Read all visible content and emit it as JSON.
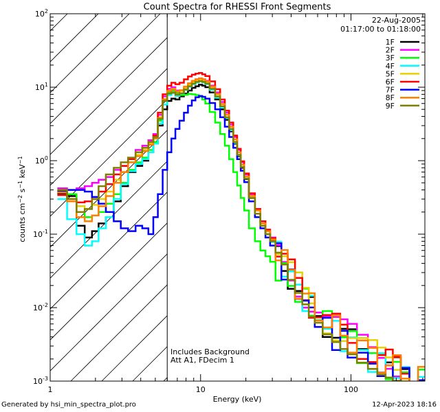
{
  "chart_data": {
    "type": "line",
    "title": "Count Spectra for RHESSI Front Segments",
    "xlabel": "Energy (keV)",
    "ylabel": "counts cm^-2 s^-1 keV^-1",
    "xscale": "log",
    "yscale": "log",
    "xlim": [
      1,
      310
    ],
    "ylim": [
      0.001,
      100
    ],
    "x_tick_labels": [
      {
        "value": 1,
        "label": "1"
      },
      {
        "value": 10,
        "label": "10"
      },
      {
        "value": 100,
        "label": "100"
      }
    ],
    "y_tick_labels": [
      {
        "value": 100,
        "label": "10",
        "exp": "2"
      },
      {
        "value": 10,
        "label": "10",
        "exp": "1"
      },
      {
        "value": 1,
        "label": "10",
        "exp": "0"
      },
      {
        "value": 0.1,
        "label": "10",
        "exp": "-1"
      },
      {
        "value": 0.01,
        "label": "10",
        "exp": "-2"
      },
      {
        "value": 0.001,
        "label": "10",
        "exp": "-3"
      }
    ],
    "grid": false,
    "legend_position": "top-right",
    "annotations": {
      "date": "22-Aug-2005",
      "time_range": "01:17:00 to 01:18:00",
      "bg_note": "Includes Background",
      "atten_note": "Att A1, FDecim 1"
    },
    "shaded_region_below_keV": 6,
    "energies": [
      1.2,
      1.4,
      1.6,
      1.8,
      2.0,
      2.2,
      2.5,
      2.8,
      3.1,
      3.5,
      3.9,
      4.3,
      4.7,
      5.0,
      5.4,
      5.8,
      6.2,
      6.6,
      7.0,
      7.5,
      8.0,
      8.5,
      9.0,
      9.5,
      10.0,
      10.5,
      11.0,
      12.0,
      13.0,
      14.0,
      15.0,
      16.0,
      17.0,
      18.0,
      19.0,
      20.0,
      22.0,
      24.0,
      26.0,
      28.0,
      30.0,
      33.0,
      36.0,
      40.0,
      45.0,
      50.0,
      55.0,
      60.0,
      70.0,
      80.0,
      90.0,
      100.0,
      120.0,
      140.0,
      160.0,
      180.0,
      200.0,
      230.0,
      260.0,
      300.0
    ],
    "series": [
      {
        "name": "1F",
        "color": "#000000",
        "values": [
          0.36,
          0.33,
          0.13,
          0.09,
          0.11,
          0.14,
          0.17,
          0.28,
          0.45,
          0.7,
          0.85,
          1.0,
          1.3,
          1.7,
          3.0,
          5.0,
          6.5,
          7.0,
          6.8,
          7.5,
          8.2,
          9.0,
          9.8,
          10.3,
          10.8,
          10.5,
          10.0,
          8.5,
          6.8,
          5.0,
          3.6,
          2.5,
          1.7,
          1.15,
          0.8,
          0.56,
          0.31,
          0.19,
          0.13,
          0.1,
          0.08,
          0.055,
          0.04,
          0.027,
          0.018,
          0.013,
          0.01,
          0.0085,
          0.006,
          0.0048,
          0.004,
          0.0034,
          0.0026,
          0.0021,
          0.0018,
          0.0016,
          0.0014,
          0.0012,
          0.0011,
          0.001
        ]
      },
      {
        "name": "2F",
        "color": "#ff00ff",
        "values": [
          0.42,
          0.4,
          0.42,
          0.45,
          0.5,
          0.55,
          0.6,
          0.75,
          0.85,
          1.1,
          1.4,
          1.6,
          1.9,
          2.3,
          4.2,
          7.5,
          9.5,
          10.0,
          9.0,
          9.0,
          9.8,
          11.0,
          12.0,
          12.8,
          13.2,
          12.8,
          12.2,
          10.5,
          8.5,
          6.3,
          4.5,
          3.1,
          2.1,
          1.4,
          0.95,
          0.65,
          0.35,
          0.22,
          0.15,
          0.115,
          0.09,
          0.063,
          0.046,
          0.031,
          0.021,
          0.015,
          0.012,
          0.0098,
          0.007,
          0.0057,
          0.0047,
          0.004,
          0.0031,
          0.0025,
          0.0022,
          0.0019,
          0.0017,
          0.0015,
          0.0013,
          0.0012
        ]
      },
      {
        "name": "3F",
        "color": "#00ff00",
        "values": [
          0.4,
          0.35,
          0.2,
          0.17,
          0.18,
          0.2,
          0.26,
          0.35,
          0.5,
          0.75,
          0.95,
          1.1,
          1.4,
          1.8,
          3.5,
          6.5,
          8.5,
          9.0,
          8.2,
          7.8,
          7.9,
          8.1,
          8.0,
          7.8,
          7.4,
          6.8,
          6.0,
          4.6,
          3.3,
          2.3,
          1.6,
          1.05,
          0.7,
          0.46,
          0.31,
          0.21,
          0.12,
          0.08,
          0.06,
          0.05,
          0.042,
          0.034,
          0.028,
          0.021,
          0.016,
          0.012,
          0.0095,
          0.008,
          0.006,
          0.0048,
          0.004,
          0.0034,
          0.0026,
          0.0021,
          0.0018,
          0.0016,
          0.0014,
          0.0012,
          0.0011,
          0.001
        ]
      },
      {
        "name": "4F",
        "color": "#00ffff",
        "values": [
          0.3,
          0.16,
          0.1,
          0.07,
          0.08,
          0.12,
          0.17,
          0.3,
          0.48,
          0.72,
          0.9,
          1.05,
          1.3,
          1.7,
          3.2,
          5.8,
          7.8,
          8.3,
          7.6,
          8.2,
          9.2,
          10.2,
          11.0,
          11.6,
          12.0,
          11.6,
          11.0,
          9.2,
          7.2,
          5.3,
          3.8,
          2.6,
          1.75,
          1.18,
          0.82,
          0.57,
          0.31,
          0.19,
          0.13,
          0.1,
          0.078,
          0.054,
          0.039,
          0.026,
          0.018,
          0.013,
          0.0098,
          0.0082,
          0.0058,
          0.0046,
          0.0038,
          0.0032,
          0.0024,
          0.0019,
          0.0016,
          0.0014,
          0.0012,
          0.0011,
          0.001,
          0.0009
        ]
      },
      {
        "name": "5F",
        "color": "#e6d200",
        "values": [
          0.38,
          0.3,
          0.24,
          0.22,
          0.25,
          0.3,
          0.38,
          0.55,
          0.7,
          0.95,
          1.2,
          1.4,
          1.7,
          2.1,
          3.9,
          6.9,
          9.0,
          9.5,
          8.7,
          8.9,
          9.8,
          10.9,
          11.8,
          12.5,
          12.8,
          12.4,
          11.7,
          10.0,
          8.0,
          5.9,
          4.2,
          2.9,
          1.95,
          1.3,
          0.88,
          0.61,
          0.33,
          0.21,
          0.14,
          0.11,
          0.085,
          0.06,
          0.043,
          0.029,
          0.02,
          0.014,
          0.011,
          0.0092,
          0.0066,
          0.0053,
          0.0044,
          0.0037,
          0.0029,
          0.0024,
          0.002,
          0.0018,
          0.0016,
          0.0014,
          0.0012,
          0.0011
        ]
      },
      {
        "name": "6F",
        "color": "#ff0000",
        "values": [
          0.34,
          0.3,
          0.27,
          0.28,
          0.32,
          0.38,
          0.48,
          0.65,
          0.85,
          1.05,
          1.3,
          1.5,
          1.8,
          2.2,
          4.5,
          8.0,
          10.5,
          11.5,
          11.0,
          11.5,
          12.8,
          14.0,
          14.8,
          15.3,
          15.6,
          15.0,
          14.2,
          12.0,
          9.4,
          6.8,
          4.8,
          3.3,
          2.2,
          1.45,
          0.98,
          0.67,
          0.36,
          0.22,
          0.15,
          0.115,
          0.088,
          0.062,
          0.045,
          0.03,
          0.02,
          0.015,
          0.011,
          0.0095,
          0.0068,
          0.0055,
          0.0045,
          0.0038,
          0.003,
          0.0024,
          0.002,
          0.0018,
          0.0016,
          0.0014,
          0.0012,
          0.0011
        ]
      },
      {
        "name": "7F",
        "color": "#0000ff",
        "values": [
          0.38,
          0.4,
          0.4,
          0.38,
          0.32,
          0.26,
          0.2,
          0.15,
          0.12,
          0.11,
          0.13,
          0.12,
          0.1,
          0.17,
          0.35,
          0.75,
          1.3,
          2.0,
          2.7,
          3.5,
          4.5,
          5.6,
          6.6,
          7.3,
          7.6,
          7.4,
          7.0,
          6.1,
          5.0,
          3.9,
          2.9,
          2.1,
          1.5,
          1.05,
          0.73,
          0.51,
          0.28,
          0.17,
          0.12,
          0.09,
          0.07,
          0.05,
          0.036,
          0.024,
          0.016,
          0.012,
          0.0088,
          0.0072,
          0.005,
          0.004,
          0.0033,
          0.0028,
          0.0021,
          0.0017,
          0.0014,
          0.0012,
          0.0011,
          0.001,
          0.0009,
          0.0008
        ]
      },
      {
        "name": "8F",
        "color": "#ff8000",
        "values": [
          0.37,
          0.28,
          0.17,
          0.15,
          0.18,
          0.24,
          0.33,
          0.5,
          0.7,
          0.95,
          1.15,
          1.35,
          1.65,
          2.0,
          3.8,
          6.8,
          8.9,
          9.4,
          8.6,
          9.1,
          10.2,
          11.3,
          12.2,
          12.8,
          13.2,
          12.8,
          12.0,
          10.2,
          8.1,
          5.9,
          4.2,
          2.9,
          1.95,
          1.3,
          0.88,
          0.61,
          0.33,
          0.21,
          0.14,
          0.11,
          0.085,
          0.06,
          0.043,
          0.029,
          0.02,
          0.014,
          0.011,
          0.009,
          0.0065,
          0.0052,
          0.0043,
          0.0036,
          0.0028,
          0.0022,
          0.0019,
          0.0017,
          0.0015,
          0.0013,
          0.0012,
          0.0011
        ]
      },
      {
        "name": "9F",
        "color": "#808000",
        "values": [
          0.4,
          0.3,
          0.2,
          0.22,
          0.3,
          0.45,
          0.65,
          0.8,
          0.95,
          1.1,
          1.3,
          1.5,
          1.8,
          2.1,
          3.7,
          6.5,
          8.2,
          8.5,
          7.9,
          8.3,
          9.3,
          10.3,
          11.2,
          11.8,
          12.1,
          11.8,
          11.2,
          9.5,
          7.5,
          5.5,
          3.9,
          2.7,
          1.8,
          1.2,
          0.82,
          0.57,
          0.31,
          0.19,
          0.13,
          0.1,
          0.08,
          0.056,
          0.041,
          0.027,
          0.019,
          0.014,
          0.01,
          0.0086,
          0.0062,
          0.005,
          0.0041,
          0.0035,
          0.0027,
          0.0022,
          0.0018,
          0.0016,
          0.0014,
          0.0013,
          0.0011,
          0.001
        ]
      }
    ]
  },
  "footer": {
    "generated_by": "Generated by hsi_min_spectra_plot.pro",
    "timestamp": "12-Apr-2023 18:16"
  }
}
